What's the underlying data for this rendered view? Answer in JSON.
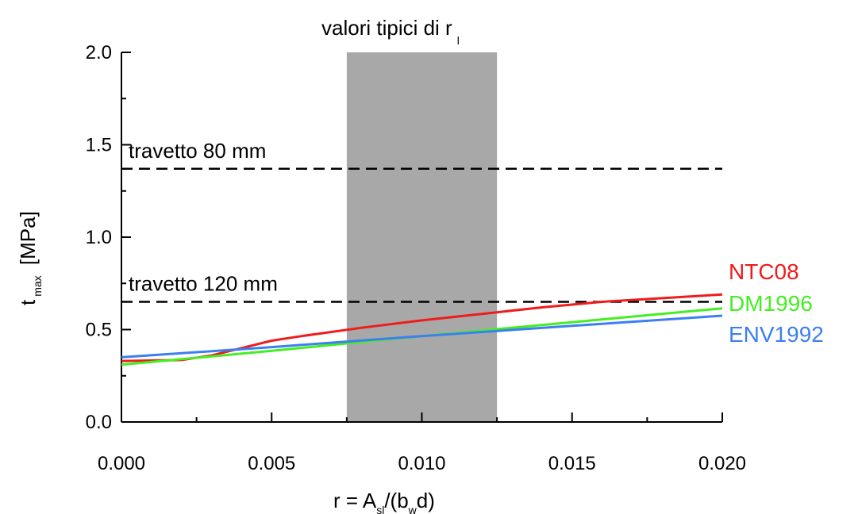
{
  "chart_data": {
    "type": "line",
    "title": {
      "main": "valori tipici di r",
      "sub": "l"
    },
    "xlabel": {
      "a": "r  = A",
      "a_sub": "sl",
      "b": "/(b",
      "b_sub": "w",
      "c": "d)"
    },
    "ylabel": {
      "main": "t",
      "sub": "max",
      "unit": "[MPa]"
    },
    "xlim": [
      0.0,
      0.02
    ],
    "ylim": [
      0.0,
      2.0
    ],
    "x_ticks": [
      "0.000",
      "0.005",
      "0.010",
      "0.015",
      "0.020"
    ],
    "y_ticks": [
      "0.0",
      "0.5",
      "1.0",
      "1.5",
      "2.0"
    ],
    "grid": false,
    "shaded_band": {
      "x_start": 0.0075,
      "x_end": 0.0125,
      "color": "#a8a8a8"
    },
    "reference_lines": [
      {
        "label": "travetto 80 mm",
        "y": 1.37
      },
      {
        "label": "travetto 120 mm",
        "y": 0.65
      }
    ],
    "series": [
      {
        "name": "NTC08",
        "color": "#ee1c1c",
        "x": [
          0.0,
          0.002,
          0.003,
          0.004,
          0.005,
          0.006,
          0.008,
          0.01,
          0.012,
          0.014,
          0.016,
          0.018,
          0.02
        ],
        "y": [
          0.33,
          0.335,
          0.36,
          0.4,
          0.44,
          0.465,
          0.51,
          0.55,
          0.585,
          0.62,
          0.65,
          0.67,
          0.69
        ]
      },
      {
        "name": "DM1996",
        "color": "#44ee22",
        "x": [
          0.0,
          0.005,
          0.01,
          0.015,
          0.02
        ],
        "y": [
          0.31,
          0.385,
          0.465,
          0.54,
          0.615
        ]
      },
      {
        "name": "ENV1992",
        "color": "#3c7ff0",
        "x": [
          0.0,
          0.005,
          0.01,
          0.015,
          0.02
        ],
        "y": [
          0.35,
          0.405,
          0.465,
          0.52,
          0.575
        ]
      }
    ]
  }
}
